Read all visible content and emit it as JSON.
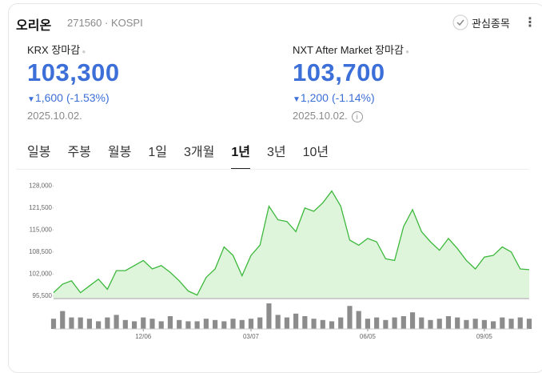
{
  "header": {
    "name": "오리온",
    "code": "271560",
    "market": "KOSPI",
    "watch_label": "관심종목"
  },
  "quotes": [
    {
      "label": "KRX 장마감",
      "price": "103,300",
      "change": "1,600",
      "change_pct": "(-1.53%)",
      "date": "2025.10.02."
    },
    {
      "label": "NXT After Market 장마감",
      "price": "103,700",
      "change": "1,200",
      "change_pct": "(-1.14%)",
      "date": "2025.10.02."
    }
  ],
  "tabs": [
    "일봉",
    "주봉",
    "월봉",
    "1일",
    "3개월",
    "1년",
    "3년",
    "10년"
  ],
  "active_tab": 5,
  "chart": {
    "type": "area",
    "color": "#3cb83c",
    "fill": "#def5db",
    "categories": [
      null,
      null,
      null,
      null,
      null,
      null,
      null,
      null,
      null,
      null,
      "12/06",
      null,
      null,
      null,
      null,
      null,
      null,
      null,
      null,
      null,
      null,
      null,
      "03/07",
      null,
      null,
      null,
      null,
      null,
      null,
      null,
      null,
      null,
      null,
      null,
      null,
      "06/05",
      null,
      null,
      null,
      null,
      null,
      null,
      null,
      null,
      null,
      null,
      null,
      null,
      "09/05",
      null,
      null,
      null,
      null,
      null
    ],
    "values": [
      96500,
      99000,
      100000,
      96500,
      98500,
      100500,
      97500,
      103000,
      103000,
      104500,
      106000,
      103500,
      104500,
      102500,
      100000,
      97000,
      95800,
      101000,
      103500,
      110000,
      107500,
      101500,
      107500,
      110500,
      122000,
      118000,
      117500,
      114500,
      121500,
      120500,
      123000,
      126500,
      122000,
      112000,
      110500,
      112500,
      111500,
      106500,
      106000,
      116000,
      121000,
      114500,
      111500,
      109000,
      112500,
      109500,
      106000,
      103500,
      107000,
      107500,
      110000,
      108500,
      103500,
      103300
    ],
    "volume": [
      40,
      70,
      45,
      45,
      40,
      30,
      45,
      55,
      35,
      30,
      45,
      40,
      30,
      50,
      35,
      30,
      30,
      40,
      35,
      30,
      40,
      35,
      40,
      45,
      100,
      55,
      45,
      60,
      50,
      40,
      35,
      30,
      45,
      90,
      70,
      40,
      45,
      35,
      45,
      50,
      65,
      45,
      35,
      40,
      50,
      45,
      35,
      40,
      35,
      30,
      45,
      40,
      45,
      40
    ],
    "volume_color": "#8c8c8c",
    "volume_lim": [
      0,
      100
    ],
    "ylim": [
      95000,
      129000
    ],
    "yticks": [
      {
        "value": 95500,
        "label": "95,500"
      },
      {
        "value": 102000,
        "label": "102,000"
      },
      {
        "value": 108500,
        "label": "108,500"
      },
      {
        "value": 115000,
        "label": "115,000"
      },
      {
        "value": 121500,
        "label": "121,500"
      },
      {
        "value": 128000,
        "label": "128,000"
      }
    ]
  }
}
